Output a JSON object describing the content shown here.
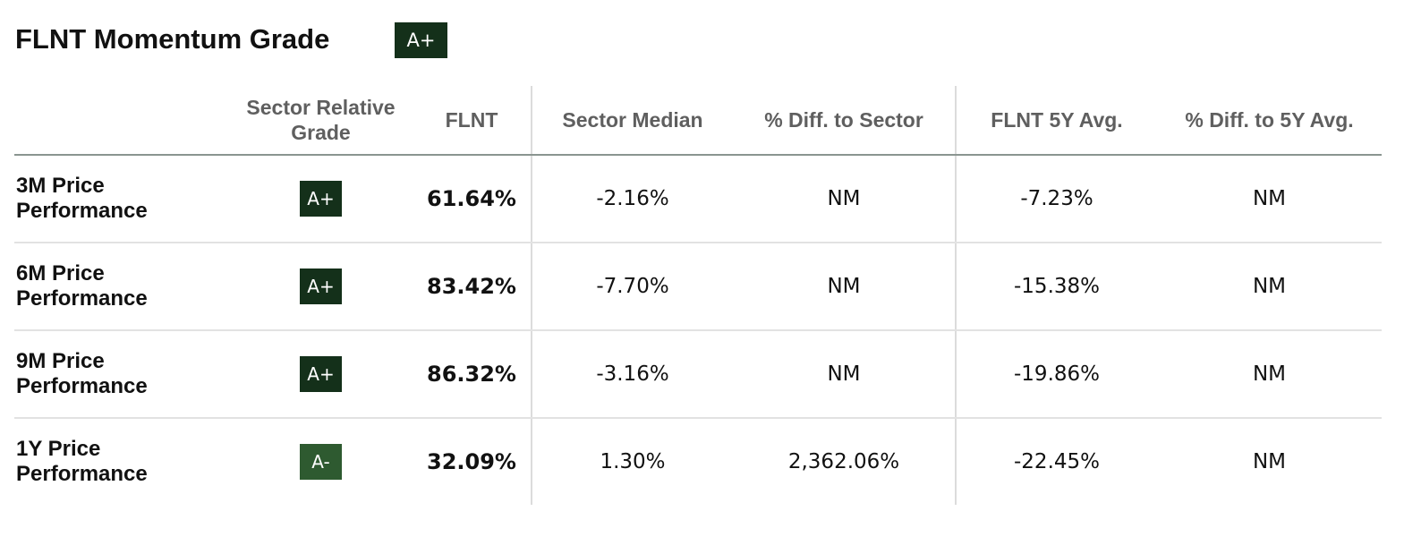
{
  "header": {
    "title": "FLNT Momentum Grade",
    "overall_grade": "A+",
    "overall_grade_color": "#14301a"
  },
  "table": {
    "columns": [
      "",
      "Sector Relative Grade",
      "FLNT",
      "Sector Median",
      "% Diff. to Sector",
      "FLNT 5Y Avg.",
      "% Diff. to 5Y Avg."
    ],
    "rows": [
      {
        "metric": "3M Price Performance",
        "grade": "A+",
        "grade_color": "#14301a",
        "flnt": "61.64%",
        "sector_median": "-2.16%",
        "diff_to_sector": "NM",
        "flnt_5y_avg": "-7.23%",
        "diff_to_5y_avg": "NM"
      },
      {
        "metric": "6M Price Performance",
        "grade": "A+",
        "grade_color": "#14301a",
        "flnt": "83.42%",
        "sector_median": "-7.70%",
        "diff_to_sector": "NM",
        "flnt_5y_avg": "-15.38%",
        "diff_to_5y_avg": "NM"
      },
      {
        "metric": "9M Price Performance",
        "grade": "A+",
        "grade_color": "#14301a",
        "flnt": "86.32%",
        "sector_median": "-3.16%",
        "diff_to_sector": "NM",
        "flnt_5y_avg": "-19.86%",
        "diff_to_5y_avg": "NM"
      },
      {
        "metric": "1Y Price Performance",
        "grade": "A-",
        "grade_color": "#2e5a30",
        "flnt": "32.09%",
        "sector_median": "1.30%",
        "diff_to_sector": "2,362.06%",
        "flnt_5y_avg": "-22.45%",
        "diff_to_5y_avg": "NM"
      }
    ]
  }
}
